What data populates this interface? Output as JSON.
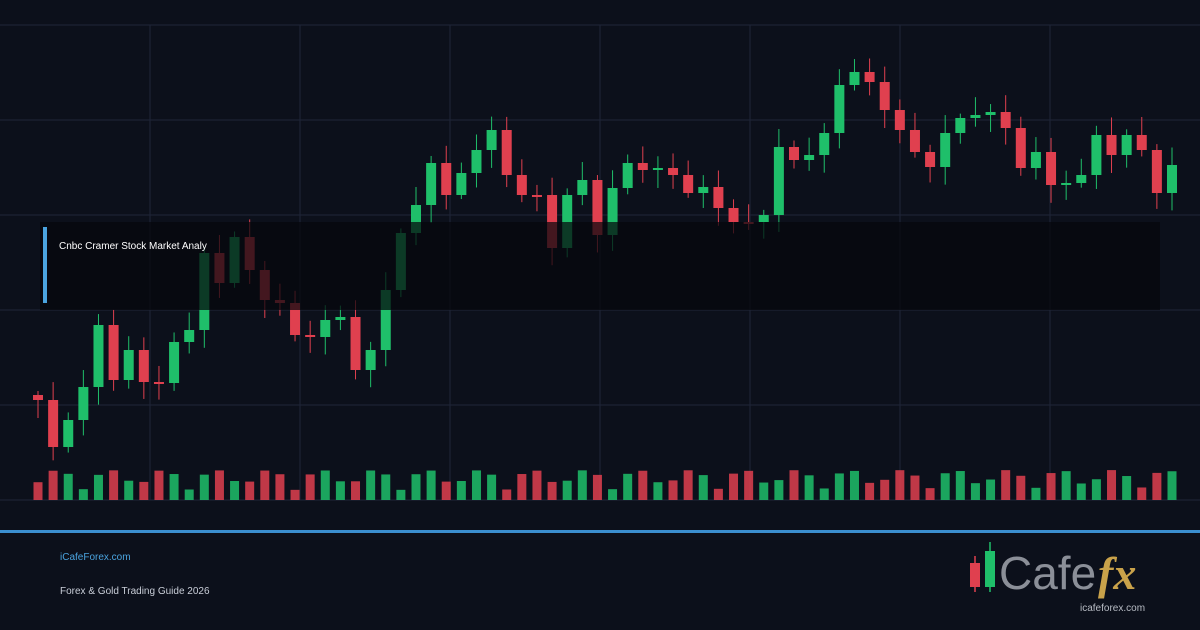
{
  "banner": {
    "title": "Cnbc Cramer Stock Market Analy"
  },
  "footer": {
    "site": "iCafeForex.com",
    "subtitle": "Forex & Gold Trading Guide 2026"
  },
  "logo": {
    "word": "Cafe",
    "accent": "fx",
    "url": "icafeforex.com"
  }
}
